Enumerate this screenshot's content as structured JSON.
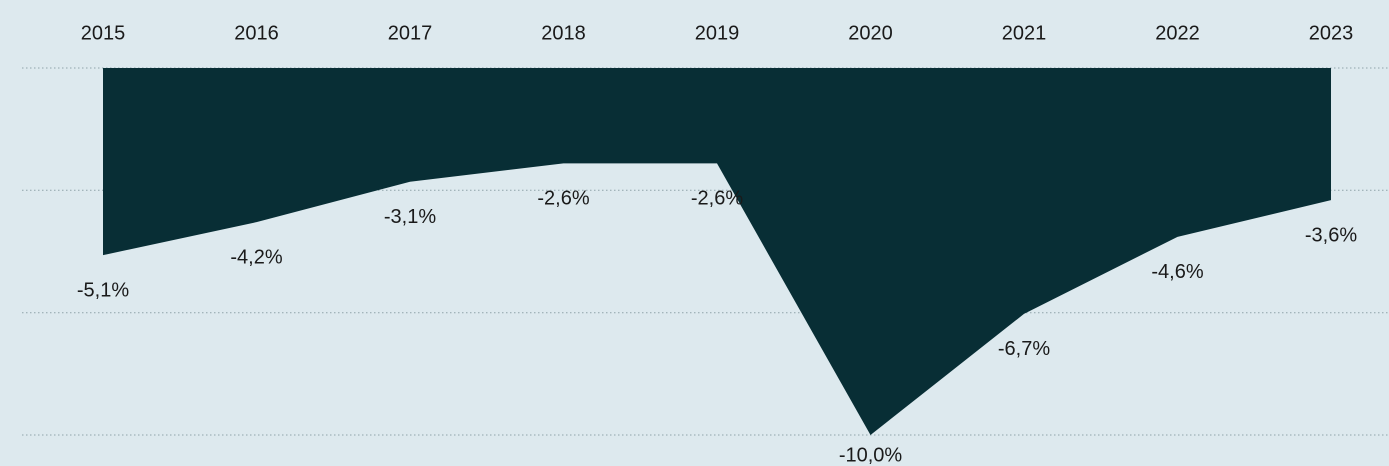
{
  "chart_data": {
    "type": "area",
    "categories": [
      "2015",
      "2016",
      "2017",
      "2018",
      "2019",
      "2020",
      "2021",
      "2022",
      "2023"
    ],
    "values": [
      -5.1,
      -4.2,
      -3.1,
      -2.6,
      -2.6,
      -10.0,
      -6.7,
      -4.6,
      -3.6
    ],
    "value_labels": [
      "-5,1%",
      "-4,2%",
      "-3,1%",
      "-2,6%",
      "-2,6%",
      "-10,0%",
      "-6,7%",
      "-4,6%",
      "-3,6%"
    ],
    "color": "#082e35",
    "ylim": [
      -10,
      0
    ],
    "yticks": [
      0,
      -3.33,
      -6.67,
      -10
    ],
    "grid": true
  }
}
